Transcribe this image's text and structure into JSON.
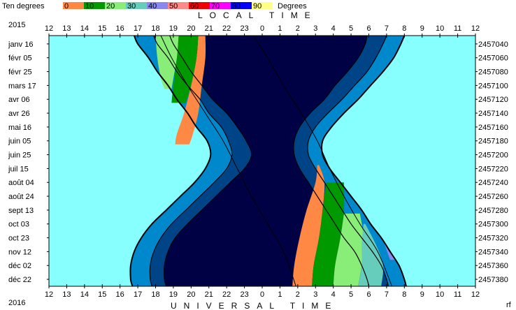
{
  "legend": {
    "left_label": "Ten degrees",
    "right_label": "Degrees",
    "entries": [
      {
        "label": "0",
        "color": "#ff8844"
      },
      {
        "label": "10",
        "color": "#009900"
      },
      {
        "label": "20",
        "color": "#88ee77"
      },
      {
        "label": "30",
        "color": "#66ccbb"
      },
      {
        "label": "40",
        "color": "#8888ee"
      },
      {
        "label": "50",
        "color": "#ff8888"
      },
      {
        "label": "60",
        "color": "#ee0000"
      },
      {
        "label": "70",
        "color": "#ff00ff"
      },
      {
        "label": "80",
        "color": "#0000ff"
      },
      {
        "label": "90",
        "color": "#ffff88"
      }
    ]
  },
  "top_axis": {
    "title": "LOCAL TIME",
    "year": "2015"
  },
  "bottom_axis": {
    "title": "UNIVERSAL TIME",
    "year": "2016",
    "corner": "rf"
  },
  "chart_data": {
    "type": "area",
    "x_ticks": [
      "12",
      "13",
      "14",
      "15",
      "16",
      "17",
      "18",
      "19",
      "20",
      "21",
      "22",
      "23",
      "0",
      "1",
      "2",
      "3",
      "4",
      "5",
      "6",
      "7",
      "8",
      "9",
      "10",
      "11",
      "12"
    ],
    "x_range_hours": [
      12,
      36
    ],
    "left_tick_labels": [
      "janv 16",
      "févr 05",
      "févr 25",
      "mars 17",
      "avr 06",
      "avr 26",
      "mai 16",
      "juin 05",
      "juin 25",
      "juil 15",
      "août 04",
      "août 24",
      "sept 13",
      "oct 03",
      "oct 23",
      "nov 12",
      "déc 02",
      "déc 22"
    ],
    "right_tick_labels": [
      "2457040",
      "2457060",
      "2457080",
      "2457100",
      "2457120",
      "2457140",
      "2457160",
      "2457180",
      "2457200",
      "2457220",
      "2457240",
      "2457260",
      "2457280",
      "2457300",
      "2457320",
      "2457340",
      "2457360",
      "2457380"
    ],
    "y_range_julian_day": [
      2457028,
      2457390
    ],
    "colors": {
      "day": "#88ffff",
      "night": "#000044",
      "astronomical_twilight": "#004488",
      "civil_nautical_twilight": "#0088cc",
      "border": "#000000"
    },
    "twilight_curves": {
      "jd": [
        2457028,
        2457040,
        2457060,
        2457080,
        2457100,
        2457120,
        2457140,
        2457160,
        2457180,
        2457200,
        2457220,
        2457240,
        2457260,
        2457280,
        2457300,
        2457320,
        2457340,
        2457360,
        2457380,
        2457390
      ],
      "sunset_hour": [
        16.8,
        17.0,
        17.6,
        18.1,
        18.7,
        19.2,
        19.8,
        20.3,
        20.9,
        21.1,
        20.8,
        20.2,
        19.4,
        18.6,
        17.8,
        17.2,
        16.8,
        16.6,
        16.6,
        16.7
      ],
      "nautical_end_hour": [
        17.9,
        18.1,
        18.7,
        19.2,
        19.8,
        20.5,
        21.0,
        21.7,
        22.1,
        22.3,
        22.0,
        21.3,
        20.5,
        19.7,
        18.9,
        18.3,
        17.9,
        17.7,
        17.7,
        17.8
      ],
      "astronomical_end_hour": [
        18.8,
        19.0,
        19.5,
        20.0,
        20.6,
        21.2,
        22.0,
        22.6,
        23.1,
        23.4,
        23.0,
        22.2,
        21.4,
        20.6,
        19.8,
        19.1,
        18.7,
        18.5,
        18.5,
        18.6
      ],
      "astronomical_start_hour": [
        29.9,
        29.8,
        29.4,
        28.8,
        28.1,
        27.5,
        26.7,
        26.1,
        25.8,
        25.8,
        26.1,
        26.6,
        27.1,
        27.6,
        28.1,
        28.6,
        29.2,
        29.6,
        29.9,
        30.0
      ],
      "nautical_start_hour": [
        31.0,
        30.8,
        30.4,
        29.9,
        29.2,
        28.5,
        27.7,
        27.0,
        26.6,
        26.6,
        27.0,
        27.5,
        28.0,
        28.5,
        29.0,
        29.6,
        30.2,
        30.7,
        31.0,
        31.1
      ],
      "sunrise_hour": [
        32.0,
        31.8,
        31.4,
        30.8,
        30.1,
        29.4,
        28.6,
        27.9,
        27.4,
        27.4,
        27.8,
        28.4,
        29.0,
        29.6,
        30.1,
        30.7,
        31.2,
        31.7,
        32.0,
        32.1
      ]
    },
    "altitude_bands": [
      {
        "label": "0",
        "color": "#ff8844",
        "jd": [
          2457028,
          2457060,
          2457100,
          2457140,
          2457170,
          2457185
        ],
        "from_hour": [
          20.4,
          20.3,
          20.0,
          19.6,
          19.2,
          19.1
        ],
        "to_hour": [
          20.8,
          20.8,
          20.6,
          20.4,
          20.1,
          19.9
        ]
      },
      {
        "label": "10",
        "color": "#009900",
        "jd": [
          2457028,
          2457060,
          2457100,
          2457125
        ],
        "from_hour": [
          19.3,
          19.2,
          19.0,
          18.9
        ],
        "to_hour": [
          20.4,
          20.3,
          20.0,
          19.7
        ]
      },
      {
        "label": "20",
        "color": "#88ee77",
        "jd": [
          2457028,
          2457060,
          2457090,
          2457105
        ],
        "from_hour": [
          18.0,
          18.1,
          18.3,
          18.5
        ],
        "to_hour": [
          19.3,
          19.2,
          19.0,
          18.9
        ]
      },
      {
        "label": "0",
        "color": "#ff8844",
        "jd": [
          2457215,
          2457240,
          2457280,
          2457320,
          2457360,
          2457390
        ],
        "from_hour": [
          27.1,
          27.0,
          26.5,
          26.1,
          25.8,
          25.7
        ],
        "to_hour": [
          27.2,
          27.5,
          27.4,
          27.2,
          26.9,
          26.8
        ]
      },
      {
        "label": "10",
        "color": "#009900",
        "jd": [
          2457240,
          2457280,
          2457320,
          2457360,
          2457390
        ],
        "from_hour": [
          27.6,
          27.4,
          27.2,
          26.9,
          26.8
        ],
        "to_hour": [
          28.6,
          28.6,
          28.4,
          28.1,
          28.0
        ]
      },
      {
        "label": "20",
        "color": "#88ee77",
        "jd": [
          2457285,
          2457320,
          2457360,
          2457390
        ],
        "from_hour": [
          28.6,
          28.4,
          28.1,
          28.0
        ],
        "to_hour": [
          29.5,
          29.7,
          29.6,
          29.4
        ]
      },
      {
        "label": "30",
        "color": "#66ccbb",
        "jd": [
          2457300,
          2457330,
          2457360,
          2457390
        ],
        "from_hour": [
          29.7,
          29.6,
          29.6,
          29.4
        ],
        "to_hour": [
          29.8,
          30.4,
          30.8,
          30.7
        ]
      },
      {
        "label": "40",
        "color": "#8888ee",
        "jd": [
          2457330,
          2457345,
          2457352
        ],
        "from_hour": [
          30.9,
          31.1,
          31.2
        ],
        "to_hour": [
          31.0,
          31.3,
          31.5
        ]
      }
    ],
    "transit_lines": [
      {
        "jd": [
          2457028,
          2457060,
          2457100,
          2457140,
          2457180,
          2457220,
          2457260,
          2457300,
          2457340,
          2457390
        ],
        "hour": [
          18.3,
          18.9,
          19.8,
          20.8,
          21.8,
          22.6,
          23.4,
          24.3,
          25.2,
          25.9
        ]
      },
      {
        "jd": [
          2457028,
          2457060,
          2457100,
          2457140,
          2457180,
          2457220,
          2457260,
          2457300,
          2457340,
          2457390
        ],
        "hour": [
          23.5,
          24.3,
          25.2,
          26.2,
          27.1,
          27.8,
          28.6,
          29.5,
          30.5,
          31.3
        ]
      }
    ]
  }
}
